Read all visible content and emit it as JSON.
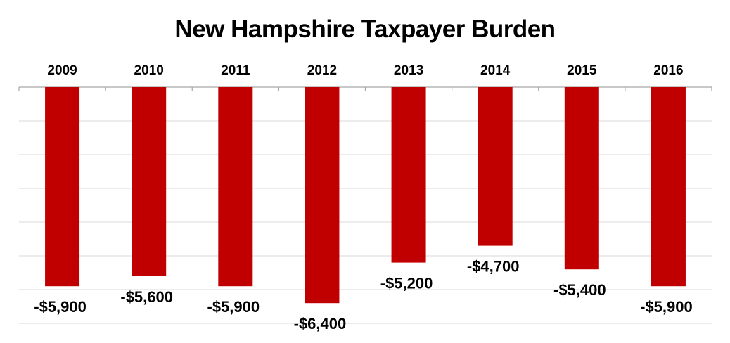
{
  "chart_data": {
    "type": "bar",
    "title": "New Hampshire Taxpayer Burden",
    "categories": [
      "2009",
      "2010",
      "2011",
      "2012",
      "2013",
      "2014",
      "2015",
      "2016"
    ],
    "values": [
      -5900,
      -5600,
      -5900,
      -6400,
      -5200,
      -4700,
      -5400,
      -5900
    ],
    "value_labels": [
      "-$5,900",
      "-$5,600",
      "-$5,900",
      "-$6,400",
      "-$5,200",
      "-$4,700",
      "-$5,400",
      "-$5,900"
    ],
    "ylim": [
      -7000,
      0
    ],
    "category_axis_position": "top",
    "grid": true,
    "bar_color": "#C00000"
  }
}
